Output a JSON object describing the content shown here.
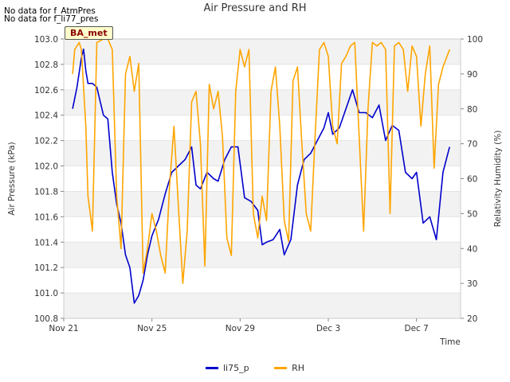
{
  "notes": [
    "No data for f_AtmPres",
    "No data for f_li77_pres"
  ],
  "badge": "BA_met",
  "chart_data": {
    "type": "line",
    "title": "Air Pressure and RH",
    "xlabel": "Time",
    "ylabel_left": "Air Pressure (kPa)",
    "ylabel_right": "Relativity Humidity (%)",
    "x_ticks": [
      "Nov 21",
      "Nov 25",
      "Nov 29",
      "Dec 3",
      "Dec 7"
    ],
    "x_tick_days": [
      0,
      4,
      8,
      12,
      16
    ],
    "xlim_days": [
      0,
      18
    ],
    "ylim_left": [
      100.8,
      103.0
    ],
    "yticks_left": [
      "100.8",
      "101.0",
      "101.2",
      "101.4",
      "101.6",
      "101.8",
      "102.0",
      "102.2",
      "102.4",
      "102.6",
      "102.8",
      "103.0"
    ],
    "ylim_right": [
      20,
      100
    ],
    "yticks_right": [
      "20",
      "30",
      "40",
      "50",
      "60",
      "70",
      "80",
      "90",
      "100"
    ],
    "grid": "horizontal bands",
    "legend_position": "bottom-center",
    "series": [
      {
        "name": "li75_p",
        "axis": "left",
        "color": "#0000cc",
        "x": [
          0.4,
          0.6,
          0.8,
          0.9,
          1.0,
          1.1,
          1.3,
          1.5,
          1.8,
          2.0,
          2.2,
          2.4,
          2.6,
          2.8,
          3.0,
          3.2,
          3.4,
          3.6,
          3.8,
          4.0,
          4.3,
          4.6,
          4.9,
          5.2,
          5.5,
          5.8,
          6.0,
          6.2,
          6.5,
          6.8,
          7.0,
          7.3,
          7.6,
          7.9,
          8.2,
          8.5,
          8.8,
          9.0,
          9.2,
          9.5,
          9.8,
          10.0,
          10.3,
          10.6,
          10.9,
          11.2,
          11.5,
          11.8,
          12.0,
          12.2,
          12.5,
          12.8,
          13.1,
          13.4,
          13.7,
          14.0,
          14.3,
          14.6,
          14.9,
          15.2,
          15.5,
          15.8,
          16.0,
          16.3,
          16.6,
          16.9,
          17.2,
          17.5
        ],
        "y": [
          102.45,
          102.62,
          102.85,
          102.92,
          102.75,
          102.65,
          102.65,
          102.62,
          102.4,
          102.37,
          101.95,
          101.7,
          101.55,
          101.3,
          101.2,
          100.92,
          100.98,
          101.1,
          101.3,
          101.45,
          101.58,
          101.78,
          101.95,
          102.0,
          102.05,
          102.15,
          101.85,
          101.82,
          101.95,
          101.9,
          101.88,
          102.05,
          102.15,
          102.15,
          101.75,
          101.72,
          101.65,
          101.38,
          101.4,
          101.42,
          101.5,
          101.3,
          101.42,
          101.85,
          102.05,
          102.1,
          102.2,
          102.3,
          102.42,
          102.25,
          102.3,
          102.45,
          102.6,
          102.42,
          102.42,
          102.38,
          102.48,
          102.2,
          102.32,
          102.28,
          101.95,
          101.9,
          101.95,
          101.55,
          101.6,
          101.42,
          101.95,
          102.15
        ]
      },
      {
        "name": "RH",
        "axis": "right",
        "color": "#ffa500",
        "x": [
          0.4,
          0.5,
          0.7,
          0.8,
          1.0,
          1.1,
          1.3,
          1.5,
          1.8,
          2.0,
          2.2,
          2.4,
          2.6,
          2.8,
          3.0,
          3.2,
          3.4,
          3.6,
          3.8,
          4.0,
          4.2,
          4.4,
          4.6,
          4.8,
          5.0,
          5.2,
          5.4,
          5.6,
          5.8,
          6.0,
          6.2,
          6.4,
          6.6,
          6.8,
          7.0,
          7.2,
          7.4,
          7.6,
          7.8,
          8.0,
          8.2,
          8.4,
          8.6,
          8.8,
          9.0,
          9.2,
          9.4,
          9.6,
          9.8,
          10.0,
          10.2,
          10.4,
          10.6,
          10.8,
          11.0,
          11.2,
          11.4,
          11.6,
          11.8,
          12.0,
          12.2,
          12.4,
          12.6,
          12.8,
          13.0,
          13.2,
          13.4,
          13.6,
          13.8,
          14.0,
          14.2,
          14.4,
          14.6,
          14.8,
          15.0,
          15.2,
          15.4,
          15.6,
          15.8,
          16.0,
          16.2,
          16.4,
          16.6,
          16.8,
          17.0,
          17.2,
          17.5
        ],
        "y": [
          90,
          97,
          99,
          97,
          75,
          55,
          45,
          99,
          100,
          100,
          97,
          55,
          40,
          90,
          95,
          85,
          93,
          33,
          40,
          50,
          45,
          38,
          33,
          58,
          75,
          52,
          30,
          45,
          82,
          85,
          70,
          35,
          87,
          80,
          85,
          72,
          43,
          38,
          85,
          97,
          92,
          97,
          50,
          43,
          55,
          48,
          85,
          92,
          75,
          48,
          42,
          88,
          92,
          70,
          50,
          45,
          72,
          97,
          99,
          95,
          75,
          70,
          93,
          95,
          98,
          99,
          72,
          45,
          80,
          99,
          98,
          99,
          97,
          50,
          98,
          99,
          97,
          85,
          98,
          95,
          75,
          90,
          98,
          63,
          87,
          92,
          97
        ]
      }
    ]
  }
}
